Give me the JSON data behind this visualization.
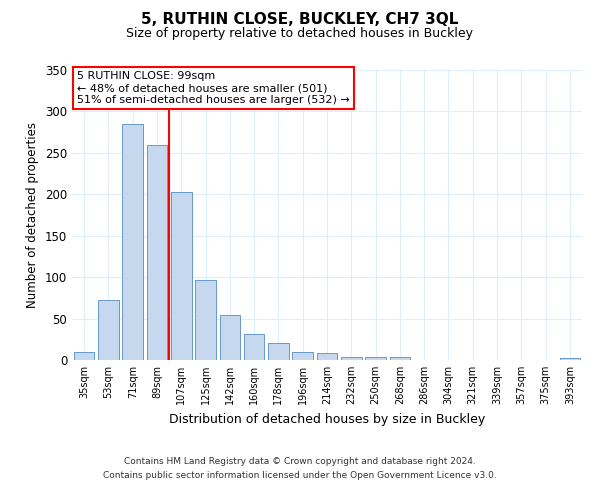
{
  "title": "5, RUTHIN CLOSE, BUCKLEY, CH7 3QL",
  "subtitle": "Size of property relative to detached houses in Buckley",
  "xlabel": "Distribution of detached houses by size in Buckley",
  "ylabel": "Number of detached properties",
  "categories": [
    "35sqm",
    "53sqm",
    "71sqm",
    "89sqm",
    "107sqm",
    "125sqm",
    "142sqm",
    "160sqm",
    "178sqm",
    "196sqm",
    "214sqm",
    "232sqm",
    "250sqm",
    "268sqm",
    "286sqm",
    "304sqm",
    "321sqm",
    "339sqm",
    "357sqm",
    "375sqm",
    "393sqm"
  ],
  "values": [
    10,
    73,
    285,
    259,
    203,
    96,
    54,
    31,
    21,
    10,
    8,
    4,
    4,
    4,
    0,
    0,
    0,
    0,
    0,
    0,
    3
  ],
  "bar_color": "#c5d8ee",
  "bar_edge_color": "#6699cc",
  "ref_line_color": "red",
  "annotation_title": "5 RUTHIN CLOSE: 99sqm",
  "annotation_line1": "← 48% of detached houses are smaller (501)",
  "annotation_line2": "51% of semi-detached houses are larger (532) →",
  "ylim": [
    0,
    350
  ],
  "yticks": [
    0,
    50,
    100,
    150,
    200,
    250,
    300,
    350
  ],
  "footnote1": "Contains HM Land Registry data © Crown copyright and database right 2024.",
  "footnote2": "Contains public sector information licensed under the Open Government Licence v3.0.",
  "bg_color": "#ffffff",
  "grid_color": "#ddeeff"
}
